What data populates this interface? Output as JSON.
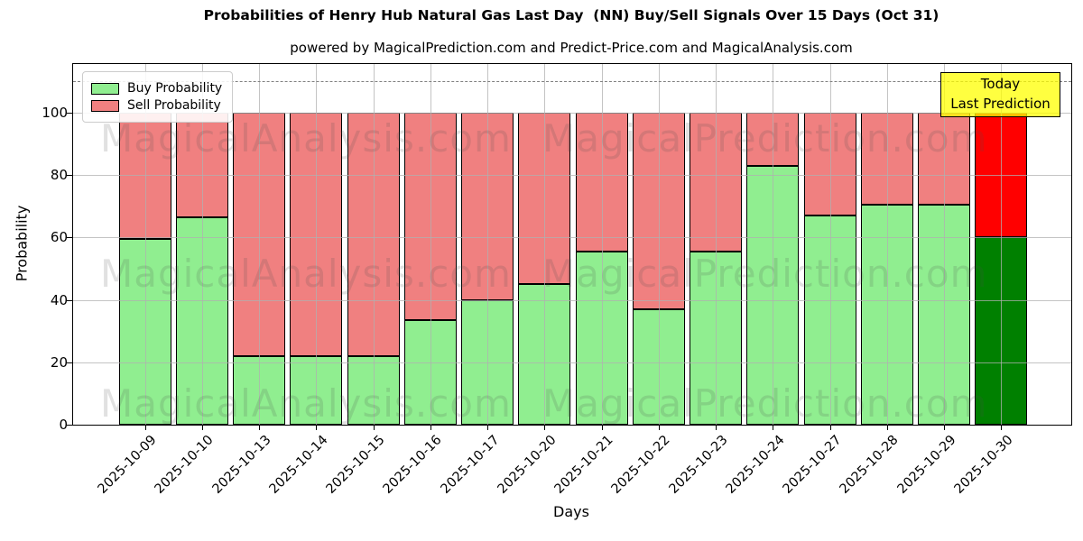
{
  "title": "Probabilities of Henry Hub Natural Gas Last Day  (NN) Buy/Sell Signals Over 15 Days (Oct 31)",
  "subtitle": "powered by MagicalPrediction.com and Predict-Price.com and MagicalAnalysis.com",
  "axes": {
    "xlabel": "Days",
    "ylabel": "Probability",
    "yticks": [
      0,
      20,
      40,
      60,
      80,
      100
    ]
  },
  "legend": {
    "items": [
      {
        "label": "Buy Probability",
        "color": "#90EE90"
      },
      {
        "label": "Sell Probability",
        "color": "#F08080"
      }
    ]
  },
  "annotation": {
    "lines": [
      "Today",
      "Last Prediction"
    ],
    "bg_color": "#FFFF00",
    "border_color": "#000000"
  },
  "watermarks": {
    "left_text": "MagicalAnalysis.com",
    "right_text": "MagicalPrediction.com"
  },
  "colors": {
    "buy": "#90EE90",
    "sell": "#F08080",
    "today_buy": "#008000",
    "today_sell": "#FF0000",
    "bar_edge": "#000000",
    "grid": "#b0b0b0",
    "reference_line": "#7f7f7f"
  },
  "chart_data": {
    "type": "bar",
    "stacked": true,
    "title": "Probabilities of Henry Hub Natural Gas Last Day  (NN) Buy/Sell Signals Over 15 Days (Oct 31)",
    "xlabel": "Days",
    "ylabel": "Probability",
    "ylim": [
      0,
      115.6
    ],
    "yticks": [
      0,
      20,
      40,
      60,
      80,
      100
    ],
    "grid": true,
    "reference_line_y": 110,
    "legend_position": "upper left",
    "categories": [
      "2025-10-09",
      "2025-10-10",
      "2025-10-13",
      "2025-10-14",
      "2025-10-15",
      "2025-10-16",
      "2025-10-17",
      "2025-10-20",
      "2025-10-21",
      "2025-10-22",
      "2025-10-23",
      "2025-10-24",
      "2025-10-27",
      "2025-10-28",
      "2025-10-29",
      "2025-10-30"
    ],
    "series": [
      {
        "name": "Buy Probability",
        "color": "#90EE90",
        "values": [
          59.5,
          66.5,
          22,
          22,
          22,
          33.5,
          40,
          45,
          55.5,
          37,
          55.5,
          83,
          67,
          70.5,
          70.5,
          60
        ]
      },
      {
        "name": "Sell Probability",
        "color": "#F08080",
        "values": [
          40.5,
          33.5,
          78,
          78,
          78,
          66.5,
          60,
          55,
          44.5,
          63,
          44.5,
          17,
          33,
          29.5,
          29.5,
          40
        ]
      }
    ],
    "today_bar": {
      "category": "2025-10-30",
      "buy_color": "#008000",
      "sell_color": "#FF0000"
    }
  }
}
